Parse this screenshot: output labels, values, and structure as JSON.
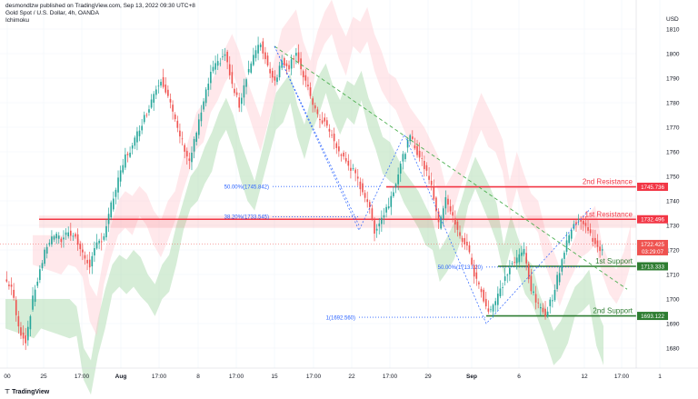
{
  "header": {
    "line1": "desmondlzw published on TradingView.com, Sep 13, 2022 09:30 UTC+8",
    "line2": "Gold Spot / U.S. Dollar, 4h, OANDA",
    "line3": "Ichimoku"
  },
  "footer": {
    "logo_text": "TradingView"
  },
  "chart_data": {
    "type": "candlestick",
    "title": "Gold Spot / U.S. Dollar, 4h, OANDA",
    "currency": "USD",
    "ylim": [
      1665,
      1816
    ],
    "y_ticks": [
      1680,
      1690,
      1700,
      1710,
      1720,
      1730,
      1740,
      1750,
      1760,
      1770,
      1780,
      1790,
      1800,
      1810
    ],
    "x_ticks": [
      "00",
      "25",
      "17:00",
      "Aug",
      "17:00",
      "8",
      "17:00",
      "15",
      "17:00",
      "22",
      "17:00",
      "29",
      "Sep",
      "6",
      "12",
      "17:00",
      "1"
    ],
    "colors": {
      "up": "#26a69a",
      "down": "#ef5350",
      "resistance": "#f23645",
      "support": "#2e7d32",
      "fib": "#2962ff",
      "trend": "#4caf50"
    },
    "price_path": [
      1708,
      1705,
      1688,
      1683,
      1700,
      1712,
      1722,
      1726,
      1724,
      1728,
      1725,
      1718,
      1714,
      1722,
      1726,
      1738,
      1748,
      1758,
      1762,
      1770,
      1776,
      1784,
      1790,
      1783,
      1772,
      1764,
      1756,
      1768,
      1780,
      1792,
      1796,
      1800,
      1787,
      1779,
      1791,
      1799,
      1804,
      1795,
      1789,
      1797,
      1795,
      1801,
      1790,
      1783,
      1774,
      1772,
      1766,
      1760,
      1756,
      1752,
      1746,
      1740,
      1728,
      1733,
      1739,
      1748,
      1758,
      1766,
      1760,
      1754,
      1747,
      1730,
      1742,
      1733,
      1725,
      1722,
      1710,
      1703,
      1695,
      1699,
      1706,
      1713,
      1716,
      1720,
      1704,
      1697,
      1694,
      1701,
      1712,
      1724,
      1730,
      1733,
      1727,
      1723,
      1719
    ],
    "levels": [
      {
        "name": "2nd Resistance",
        "value": 1745.736,
        "label": "1745.736"
      },
      {
        "name": "1st Resistance",
        "value": 1732.496,
        "label": "1732.496"
      },
      {
        "name": "1st Support",
        "value": 1713.333,
        "label": "1713.333"
      },
      {
        "name": "2nd Support",
        "value": 1693.122,
        "label": "1693.122"
      }
    ],
    "current_price": {
      "value": 1722.425,
      "label": "1722.425",
      "countdown": "03:29:07"
    },
    "fib_labels": [
      {
        "text": "50.00%(1745.842)",
        "value": 1745.842
      },
      {
        "text": "38.20%(1733.545)",
        "value": 1733.545
      },
      {
        "text": "50.00%(1713.020)",
        "value": 1713.02
      },
      {
        "text": "1(1692.560)",
        "value": 1692.56
      }
    ]
  }
}
